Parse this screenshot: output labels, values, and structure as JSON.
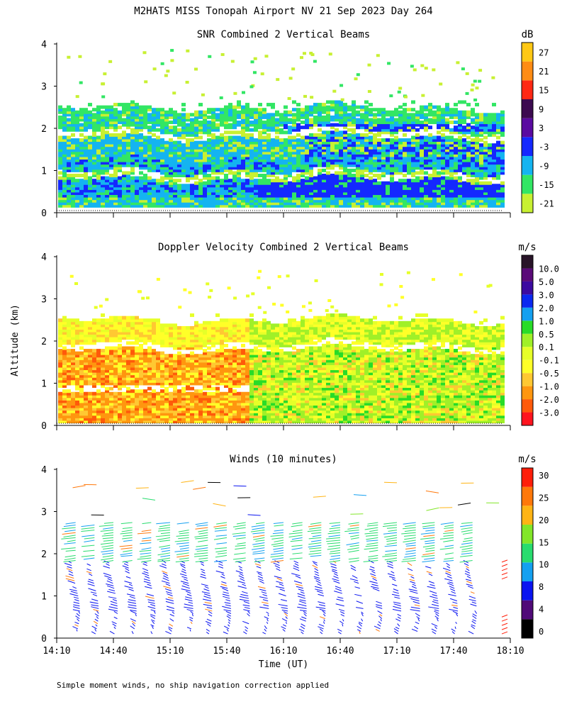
{
  "title": "M2HATS MISS Tonopah Airport NV  21 Sep 2023 Day 264",
  "footnote": "Simple moment winds, no ship navigation correction applied",
  "chart_data": [
    {
      "type": "heatmap",
      "title": "SNR Combined 2 Vertical Beams",
      "unit": "dB",
      "ylim": [
        0,
        4
      ],
      "yticks": [
        "0",
        "1",
        "2",
        "3",
        "4"
      ],
      "colorbar": {
        "colors": [
          "#c8f032",
          "#32e664",
          "#14b4f0",
          "#1428ff",
          "#5a0aa0",
          "#3c0a50",
          "#ff2814",
          "#ff8c14",
          "#ffc814"
        ],
        "labels": [
          "-21",
          "-15",
          "-9",
          "-3",
          "3",
          "9",
          "15",
          "21",
          "27"
        ]
      },
      "layers": [
        {
          "name": "upper-layer",
          "height_km": [
            1.85,
            2.45
          ],
          "value_db": -15
        },
        {
          "name": "mid-layer",
          "height_km": [
            1.0,
            1.75
          ],
          "value_db": -9
        },
        {
          "name": "low-layer",
          "height_km": [
            0.1,
            0.95
          ],
          "value_db": -9
        },
        {
          "name": "core-blue",
          "height_km": [
            0.5,
            1.3
          ],
          "value_db": -3
        }
      ]
    },
    {
      "type": "heatmap",
      "title": "Doppler Velocity Combined 2 Vertical Beams",
      "unit": "m/s",
      "ylim": [
        0,
        4
      ],
      "yticks": [
        "0",
        "1",
        "2",
        "3",
        "4"
      ],
      "ylabel": "Altitude (km)",
      "colorbar": {
        "colors": [
          "#ff141e",
          "#ff5a0a",
          "#ff960f",
          "#ffc832",
          "#ffff28",
          "#e6ff28",
          "#a0f028",
          "#28dc28",
          "#14a0f0",
          "#0a28f0",
          "#3c0aa0",
          "#5a0a78",
          "#281428"
        ],
        "labels": [
          "-3.0",
          "-2.0",
          "-1.0",
          "-0.5",
          "-0.1",
          "0.1",
          "0.5",
          "1.0",
          "2.0",
          "3.0",
          "5.0",
          "10.0"
        ]
      },
      "regimes": [
        {
          "name": "early-downward",
          "time_range": [
            "14:10",
            "15:50"
          ],
          "value_ms": -0.5
        },
        {
          "name": "late-upward",
          "time_range": [
            "15:50",
            "18:00"
          ],
          "value_ms": 0.3
        }
      ]
    },
    {
      "type": "scatter",
      "title": "Winds (10 minutes)",
      "unit": "m/s",
      "ylim": [
        0,
        4
      ],
      "yticks": [
        "0",
        "1",
        "2",
        "3",
        "4"
      ],
      "xlabel": "Time (UT)",
      "xticks": [
        "14:10",
        "14:40",
        "15:10",
        "15:40",
        "16:10",
        "16:40",
        "17:10",
        "17:40",
        "18:10"
      ],
      "colorbar": {
        "colors": [
          "#000000",
          "#500a78",
          "#0a14f0",
          "#14a0f0",
          "#28dc6e",
          "#82e628",
          "#ffb414",
          "#ff780a",
          "#ff1e0a"
        ],
        "labels": [
          "0",
          "4",
          "8",
          "10",
          "15",
          "20",
          "25",
          "30"
        ]
      },
      "profile_times": [
        "14:20",
        "14:30",
        "14:40",
        "14:50",
        "15:00",
        "15:10",
        "15:20",
        "15:30",
        "15:40",
        "15:50",
        "16:00",
        "16:10",
        "16:20",
        "16:30",
        "16:40",
        "16:50",
        "17:00",
        "17:10",
        "17:20",
        "17:30",
        "17:40",
        "17:50"
      ]
    }
  ]
}
